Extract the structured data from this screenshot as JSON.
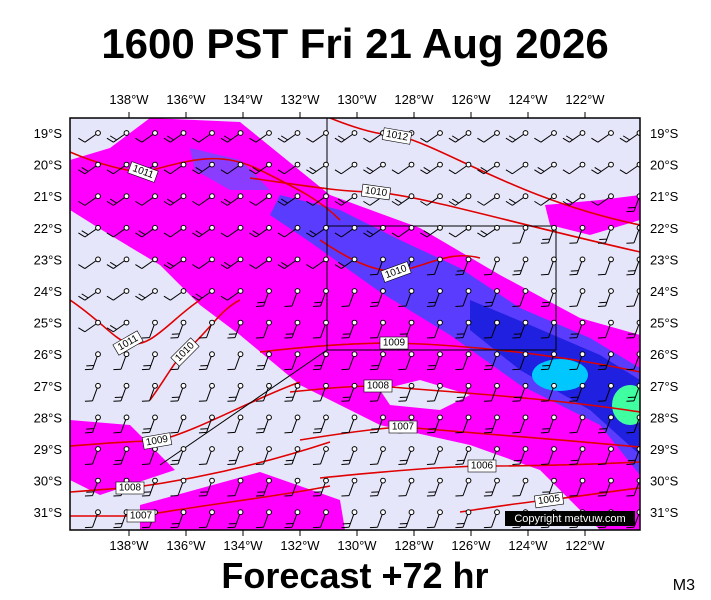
{
  "title": "1600 PST Fri 21 Aug 2026",
  "footer": "Forecast +72 hr",
  "model_label": "M3",
  "copyright": "Copyright metvuw.com",
  "longitude_labels": [
    "138°W",
    "136°W",
    "134°W",
    "132°W",
    "130°W",
    "128°W",
    "126°W",
    "124°W",
    "122°W"
  ],
  "latitude_labels": [
    "19°S",
    "20°S",
    "21°S",
    "22°S",
    "23°S",
    "24°S",
    "25°S",
    "26°S",
    "27°S",
    "28°S",
    "29°S",
    "30°S",
    "31°S"
  ],
  "isobar_labels": [
    "1012",
    "1011",
    "1010",
    "1010",
    "1009",
    "1011",
    "1010",
    "1008",
    "1007",
    "1006",
    "1005",
    "1009",
    "1008",
    "1007"
  ]
}
